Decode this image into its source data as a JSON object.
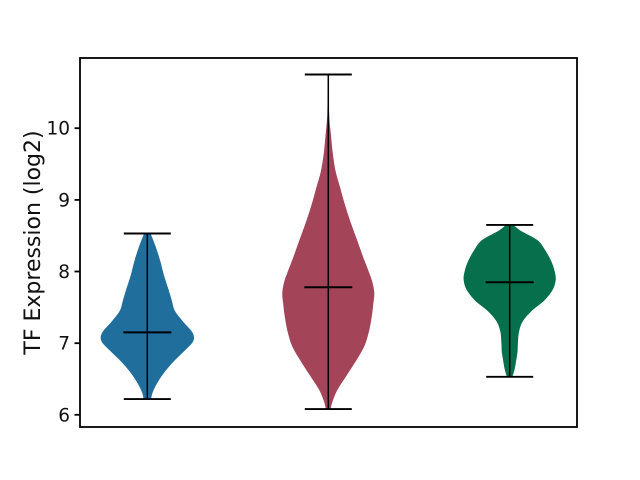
{
  "chart_data": {
    "type": "violin",
    "title": "",
    "xlabel": "",
    "ylabel": "TF Expression (log2)",
    "ylim": [
      5.83,
      10.98
    ],
    "yticks": [
      6,
      7,
      8,
      9,
      10
    ],
    "x_tick_labels": [],
    "grid": false,
    "legend": null,
    "series": [
      {
        "color": "#1f6e9c",
        "min": 6.22,
        "median": 7.15,
        "max": 8.53,
        "profile": [
          [
            8.53,
            0.07
          ],
          [
            8.35,
            0.18
          ],
          [
            8.15,
            0.28
          ],
          [
            7.95,
            0.36
          ],
          [
            7.75,
            0.46
          ],
          [
            7.6,
            0.53
          ],
          [
            7.45,
            0.6
          ],
          [
            7.3,
            0.78
          ],
          [
            7.15,
            0.98
          ],
          [
            7.03,
            1.0
          ],
          [
            6.9,
            0.82
          ],
          [
            6.75,
            0.58
          ],
          [
            6.6,
            0.38
          ],
          [
            6.45,
            0.22
          ],
          [
            6.32,
            0.12
          ],
          [
            6.22,
            0.08
          ]
        ]
      },
      {
        "color": "#a34459",
        "min": 6.08,
        "median": 7.78,
        "max": 10.75,
        "profile": [
          [
            10.75,
            0.01
          ],
          [
            10.2,
            0.02
          ],
          [
            9.9,
            0.06
          ],
          [
            9.64,
            0.1
          ],
          [
            9.4,
            0.16
          ],
          [
            9.17,
            0.26
          ],
          [
            8.94,
            0.36
          ],
          [
            8.7,
            0.48
          ],
          [
            8.45,
            0.62
          ],
          [
            8.2,
            0.76
          ],
          [
            8.0,
            0.88
          ],
          [
            7.85,
            0.96
          ],
          [
            7.7,
            1.0
          ],
          [
            7.55,
            0.98
          ],
          [
            7.35,
            0.94
          ],
          [
            7.15,
            0.88
          ],
          [
            6.95,
            0.78
          ],
          [
            6.75,
            0.6
          ],
          [
            6.55,
            0.4
          ],
          [
            6.35,
            0.2
          ],
          [
            6.2,
            0.1
          ],
          [
            6.08,
            0.05
          ]
        ]
      },
      {
        "color": "#066f4b",
        "min": 6.53,
        "median": 7.85,
        "max": 8.65,
        "profile": [
          [
            8.65,
            0.08
          ],
          [
            8.57,
            0.24
          ],
          [
            8.44,
            0.6
          ],
          [
            8.3,
            0.77
          ],
          [
            8.15,
            0.9
          ],
          [
            8.0,
            0.98
          ],
          [
            7.88,
            1.0
          ],
          [
            7.75,
            0.94
          ],
          [
            7.6,
            0.76
          ],
          [
            7.45,
            0.48
          ],
          [
            7.3,
            0.28
          ],
          [
            7.15,
            0.2
          ],
          [
            7.0,
            0.18
          ],
          [
            6.88,
            0.17
          ],
          [
            6.75,
            0.14
          ],
          [
            6.64,
            0.11
          ],
          [
            6.53,
            0.06
          ]
        ]
      }
    ]
  }
}
